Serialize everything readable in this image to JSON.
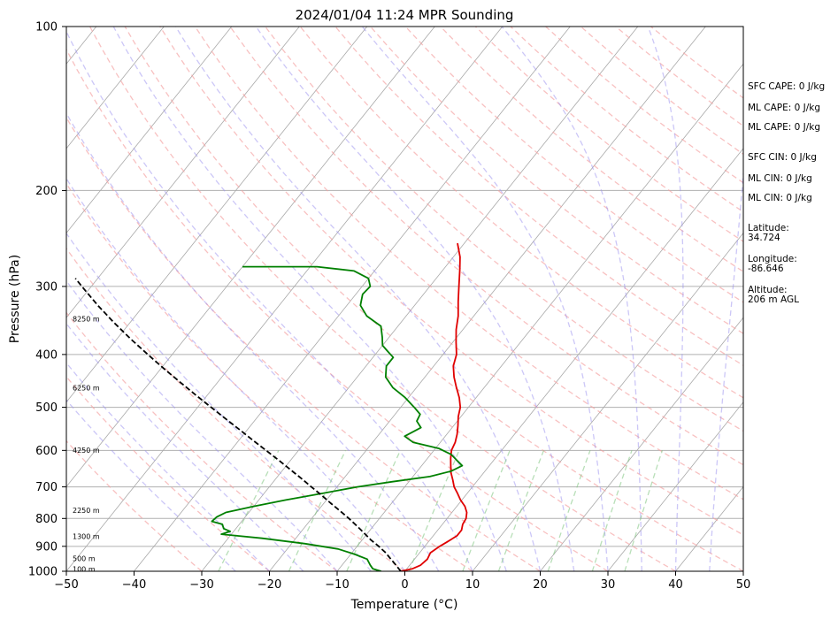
{
  "chart_data": {
    "type": "skew-t",
    "title": "2024/01/04 11:24 MPR Sounding",
    "xlabel": "Temperature (°C)",
    "ylabel": "Pressure (hPa)",
    "xlim": [
      -50,
      50
    ],
    "ylim": [
      1000,
      100
    ],
    "y_scale": "log",
    "grid": true,
    "x_ticks": [
      -50,
      -40,
      -30,
      -20,
      -10,
      0,
      10,
      20,
      30,
      40,
      50
    ],
    "x_tick_labels": [
      "−50",
      "−40",
      "−30",
      "−20",
      "−10",
      "0",
      "10",
      "20",
      "30",
      "40",
      "50"
    ],
    "y_ticks": [
      1000,
      900,
      800,
      700,
      600,
      500,
      400,
      300,
      200,
      100
    ],
    "y_tick_labels": [
      "1000",
      "900",
      "800",
      "700",
      "600",
      "500",
      "400",
      "300",
      "200",
      "100"
    ],
    "series": [
      {
        "color": "#e00000",
        "points": [
          [
            1000,
            -0.6
          ],
          [
            990,
            0.8
          ],
          [
            975,
            1.6
          ],
          [
            950,
            1.9
          ],
          [
            925,
            1.6
          ],
          [
            900,
            2.2
          ],
          [
            880,
            2.9
          ],
          [
            860,
            3.5
          ],
          [
            840,
            3.5
          ],
          [
            820,
            3.0
          ],
          [
            800,
            2.8
          ],
          [
            780,
            2.2
          ],
          [
            760,
            1.2
          ],
          [
            740,
            -0.2
          ],
          [
            720,
            -1.4
          ],
          [
            700,
            -2.7
          ],
          [
            680,
            -3.7
          ],
          [
            660,
            -4.8
          ],
          [
            640,
            -5.7
          ],
          [
            620,
            -6.6
          ],
          [
            600,
            -7.4
          ],
          [
            580,
            -7.8
          ],
          [
            560,
            -8.5
          ],
          [
            540,
            -9.4
          ],
          [
            520,
            -10.4
          ],
          [
            500,
            -11.2
          ],
          [
            480,
            -12.5
          ],
          [
            460,
            -14.1
          ],
          [
            440,
            -15.7
          ],
          [
            420,
            -17.1
          ],
          [
            400,
            -18.0
          ],
          [
            380,
            -19.5
          ],
          [
            360,
            -21.0
          ],
          [
            340,
            -22.3
          ],
          [
            320,
            -24.0
          ],
          [
            300,
            -25.7
          ],
          [
            280,
            -27.5
          ],
          [
            265,
            -29.0
          ],
          [
            250,
            -31.0
          ]
        ]
      },
      {
        "color": "#008000",
        "points": [
          [
            1000,
            -3.5
          ],
          [
            990,
            -5.0
          ],
          [
            975,
            -5.8
          ],
          [
            950,
            -7.0
          ],
          [
            930,
            -9.5
          ],
          [
            910,
            -12.5
          ],
          [
            890,
            -18.0
          ],
          [
            870,
            -25.0
          ],
          [
            855,
            -31.5
          ],
          [
            845,
            -30.5
          ],
          [
            835,
            -31.8
          ],
          [
            820,
            -32.5
          ],
          [
            810,
            -34.4
          ],
          [
            795,
            -34.2
          ],
          [
            780,
            -33.4
          ],
          [
            760,
            -30.0
          ],
          [
            740,
            -26.0
          ],
          [
            720,
            -21.5
          ],
          [
            700,
            -17.0
          ],
          [
            685,
            -12.5
          ],
          [
            670,
            -7.5
          ],
          [
            655,
            -5.0
          ],
          [
            640,
            -4.0
          ],
          [
            625,
            -5.5
          ],
          [
            610,
            -7.0
          ],
          [
            595,
            -9.5
          ],
          [
            580,
            -14.0
          ],
          [
            565,
            -16.0
          ],
          [
            545,
            -14.6
          ],
          [
            530,
            -16.0
          ],
          [
            515,
            -16.3
          ],
          [
            500,
            -18.0
          ],
          [
            480,
            -20.5
          ],
          [
            460,
            -23.5
          ],
          [
            440,
            -25.8
          ],
          [
            420,
            -27.0
          ],
          [
            405,
            -27.0
          ],
          [
            395,
            -28.5
          ],
          [
            385,
            -30.0
          ],
          [
            372,
            -31.0
          ],
          [
            355,
            -32.5
          ],
          [
            340,
            -35.8
          ],
          [
            325,
            -38.0
          ],
          [
            310,
            -39.0
          ],
          [
            300,
            -38.8
          ],
          [
            290,
            -40.0
          ],
          [
            281,
            -43.0
          ],
          [
            276,
            -49.0
          ],
          [
            276,
            -60.0
          ]
        ]
      },
      {
        "color": "#000000",
        "dashed": true,
        "points": [
          [
            1000,
            -0.6
          ],
          [
            975,
            -2.0
          ],
          [
            950,
            -3.5
          ],
          [
            925,
            -5.0
          ],
          [
            900,
            -6.8
          ],
          [
            875,
            -8.8
          ],
          [
            850,
            -10.6
          ],
          [
            825,
            -12.5
          ],
          [
            800,
            -14.5
          ],
          [
            775,
            -16.7
          ],
          [
            750,
            -19.0
          ],
          [
            725,
            -21.3
          ],
          [
            700,
            -23.8
          ],
          [
            675,
            -26.3
          ],
          [
            650,
            -29.0
          ],
          [
            625,
            -31.8
          ],
          [
            600,
            -34.8
          ],
          [
            575,
            -37.9
          ],
          [
            550,
            -41.1
          ],
          [
            525,
            -44.5
          ],
          [
            500,
            -48.0
          ],
          [
            475,
            -51.7
          ],
          [
            450,
            -55.5
          ],
          [
            425,
            -59.5
          ],
          [
            400,
            -63.6
          ],
          [
            375,
            -67.9
          ],
          [
            350,
            -72.3
          ],
          [
            325,
            -76.8
          ],
          [
            300,
            -81.4
          ],
          [
            290,
            -83.3
          ]
        ]
      }
    ],
    "altitude_labels": [
      {
        "text": "100 m",
        "p": 991
      },
      {
        "text": "500 m",
        "p": 947
      },
      {
        "text": "1300 m",
        "p": 862
      },
      {
        "text": "2250 m",
        "p": 773
      },
      {
        "text": "4250 m",
        "p": 599
      },
      {
        "text": "6250 m",
        "p": 460
      },
      {
        "text": "8250 m",
        "p": 344
      }
    ],
    "annotations": [
      "SFC CAPE: 0 J/kg",
      "ML CAPE: 0 J/kg",
      "ML CAPE: 0 J/kg",
      "SFC CIN: 0 J/kg",
      "ML CIN: 0 J/kg",
      "ML CIN: 0 J/kg",
      "Latitude:",
      "34.724",
      "Longitude:",
      "-86.646",
      "Altitude:",
      "206 m AGL"
    ]
  }
}
